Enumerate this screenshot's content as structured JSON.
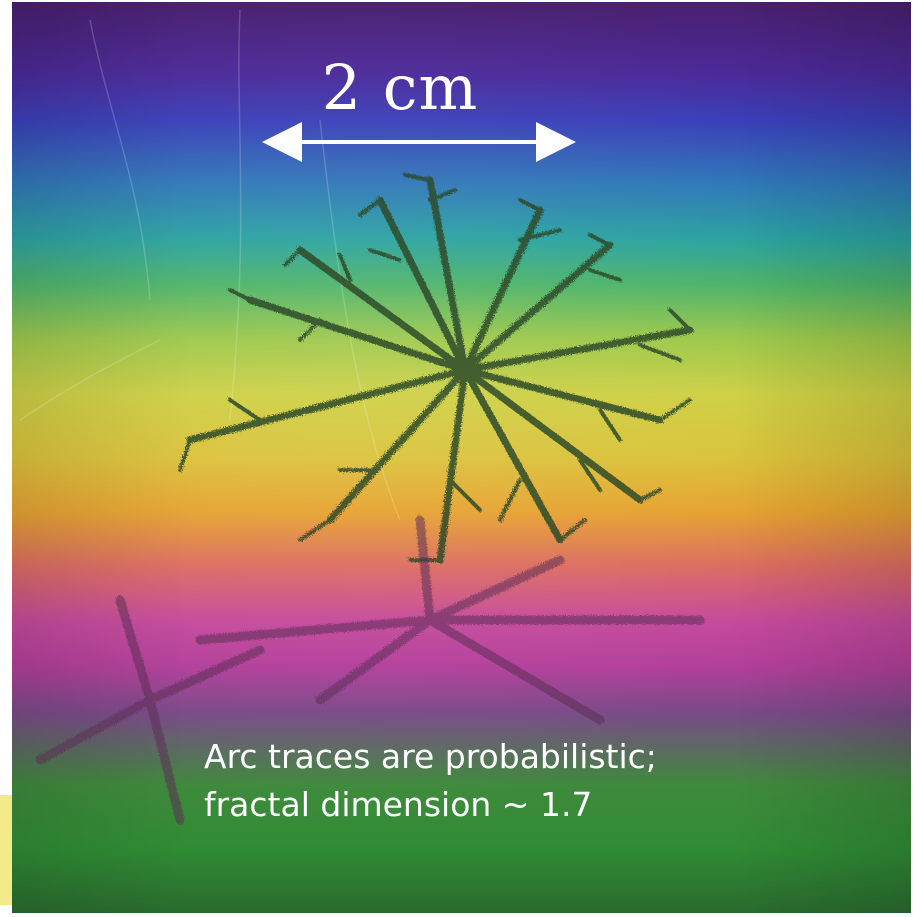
{
  "figure": {
    "scale_label": "2 cm",
    "caption_lines": [
      "Arc traces are probabilistic;",
      "fractal dimension ~ 1.7"
    ],
    "colors": {
      "text": "#ffffff",
      "trace": "#2f4a2a",
      "trace_lower": "#5a2a55"
    }
  }
}
